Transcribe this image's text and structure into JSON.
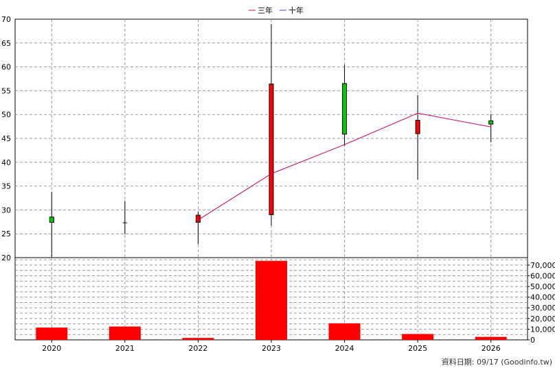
{
  "legend": [
    {
      "label": "三年",
      "color": "#cc0066"
    },
    {
      "label": "十年",
      "color": "#6633cc"
    }
  ],
  "footer_text": "資料日期: 09/17  (Goodinfo.tw)",
  "chart_data": [
    {
      "type": "candlestick",
      "grid": true,
      "ylim": [
        20,
        70
      ],
      "yticks": [
        "20",
        "25",
        "30",
        "35",
        "40",
        "45",
        "50",
        "55",
        "60",
        "65",
        "70"
      ],
      "categories": [
        "2020",
        "2021",
        "2022",
        "2023",
        "2024",
        "2025",
        "2026"
      ],
      "ohlc": [
        {
          "open": 27.4,
          "high": 33.8,
          "low": 19.7,
          "close": 28.5,
          "up": true
        },
        {
          "open": 27.3,
          "high": 31.9,
          "low": 24.9,
          "close": 27.3,
          "up": true
        },
        {
          "open": 28.9,
          "high": 29.6,
          "low": 22.8,
          "close": 27.4,
          "up": false
        },
        {
          "open": 56.4,
          "high": 69.0,
          "low": 26.7,
          "close": 29.0,
          "up": false
        },
        {
          "open": 45.9,
          "high": 60.5,
          "low": 43.5,
          "close": 56.5,
          "up": true
        },
        {
          "open": 48.8,
          "high": 54.1,
          "low": 36.4,
          "close": 46.0,
          "up": false
        },
        {
          "open": 48.0,
          "high": 50.1,
          "low": 44.2,
          "close": 48.7,
          "up": true
        }
      ],
      "up_color": "#00cc00",
      "down_color": "#ff0000",
      "series": [
        {
          "name": "三年",
          "color": "#cc0066",
          "values": [
            null,
            null,
            27.9,
            37.6,
            43.7,
            50.3,
            47.4
          ]
        }
      ]
    },
    {
      "type": "bar",
      "grid": true,
      "categories": [
        "2020",
        "2021",
        "2022",
        "2023",
        "2024",
        "2025",
        "2026"
      ],
      "values": [
        11500,
        12500,
        1800,
        74000,
        15500,
        5500,
        2800
      ],
      "ylim": [
        0,
        77000
      ],
      "yticks": [
        "0",
        "10,000",
        "20,000",
        "30,000",
        "40,000",
        "50,000",
        "60,000",
        "70,000"
      ],
      "color": "#ff0000"
    }
  ]
}
